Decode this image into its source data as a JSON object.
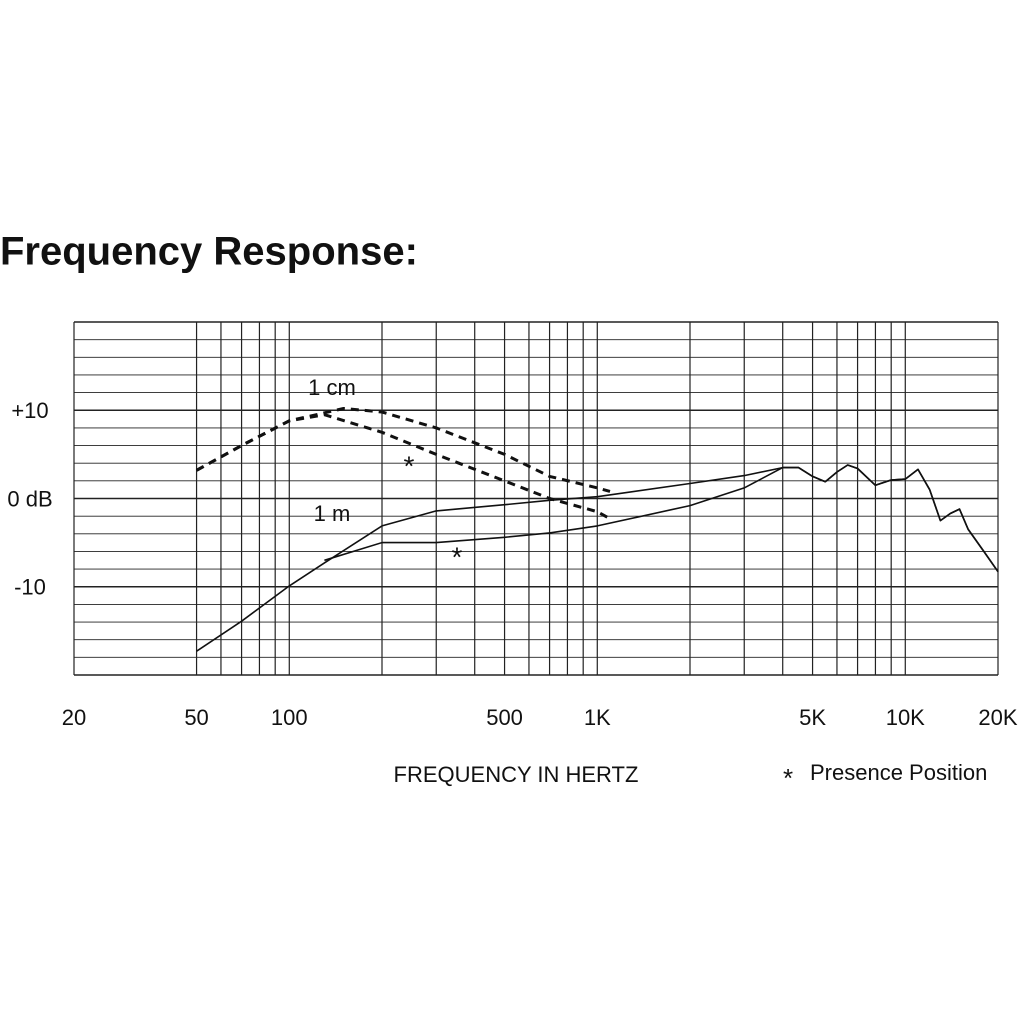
{
  "chart_data": {
    "type": "line",
    "title": "Frequency Response:",
    "x_label": "FREQUENCY IN HERTZ",
    "legend_marker": "*",
    "legend_text": "Presence Position",
    "log_x": true,
    "grid": true,
    "xlim": [
      20,
      20000
    ],
    "ylim": [
      -20,
      20
    ],
    "xticks": [
      20,
      50,
      100,
      500,
      {
        "value": 1000,
        "label": "1K"
      },
      {
        "value": 5000,
        "label": "5K"
      },
      {
        "value": 10000,
        "label": "10K"
      },
      {
        "value": 20000,
        "label": "20K"
      }
    ],
    "yticks": [
      {
        "value": 10,
        "label": "+10"
      },
      {
        "value": 0,
        "label": "0 dB"
      },
      -10
    ],
    "xgrid": [
      20,
      50,
      60,
      70,
      80,
      90,
      100,
      200,
      300,
      400,
      500,
      600,
      700,
      800,
      900,
      1000,
      2000,
      3000,
      4000,
      5000,
      6000,
      7000,
      8000,
      9000,
      10000,
      20000
    ],
    "ygrid": [
      -20,
      -18,
      -16,
      -14,
      -12,
      -10,
      -8,
      -6,
      -4,
      -2,
      0,
      2,
      4,
      6,
      8,
      10,
      12,
      14,
      16,
      18,
      20
    ],
    "annotations": [
      "1 cm",
      "1 m",
      "*",
      "*"
    ],
    "series": [
      {
        "color": "#111111",
        "dashed": true,
        "x": [
          50,
          70,
          100,
          150,
          200,
          300,
          500,
          700,
          1000,
          1100
        ],
        "values": [
          3.2,
          6,
          8.8,
          10.2,
          9.8,
          8,
          5,
          2.5,
          1.2,
          0.8
        ]
      },
      {
        "color": "#111111",
        "dashed": true,
        "x": [
          50,
          70,
          100,
          130,
          200,
          300,
          500,
          700,
          1000,
          1100
        ],
        "values": [
          3.2,
          6,
          8.8,
          9.5,
          7.5,
          5,
          2,
          0,
          -1.5,
          -2.3
        ]
      },
      {
        "color": "#111111",
        "dashed": false,
        "x": [
          50,
          70,
          100,
          130,
          200,
          300,
          500,
          700,
          1000,
          2000,
          3000,
          4000,
          4500,
          5000,
          5500,
          6000,
          6500,
          7000,
          8000,
          9000,
          10000,
          11000,
          12000,
          13000,
          14000,
          15000,
          16000,
          18000,
          20000
        ],
        "values": [
          -17.3,
          -13.9,
          -9.9,
          -7.3,
          -3.1,
          -1.4,
          -0.7,
          -0.2,
          0.2,
          1.7,
          2.6,
          3.5,
          3.5,
          2.5,
          1.9,
          3,
          3.8,
          3.4,
          1.5,
          2.1,
          2.2,
          3.3,
          1,
          -2.5,
          -1.7,
          -1.2,
          -3.5,
          -6,
          -8.3
        ]
      },
      {
        "color": "#111111",
        "dashed": false,
        "x": [
          130,
          200,
          300,
          500,
          700,
          1000,
          2000,
          3000,
          4000,
          4500,
          5000,
          5500,
          6000,
          6500,
          7000,
          8000,
          9000,
          10000,
          11000,
          12000,
          13000,
          14000,
          15000,
          16000,
          18000,
          20000
        ],
        "values": [
          -7,
          -5,
          -5,
          -4.4,
          -3.9,
          -3.1,
          -0.8,
          1.2,
          3.5,
          3.5,
          2.5,
          1.9,
          3,
          3.8,
          3.4,
          1.5,
          2.1,
          2.2,
          3.3,
          1,
          -2.5,
          -1.7,
          -1.2,
          -3.5,
          -6,
          -8.3
        ]
      }
    ]
  }
}
